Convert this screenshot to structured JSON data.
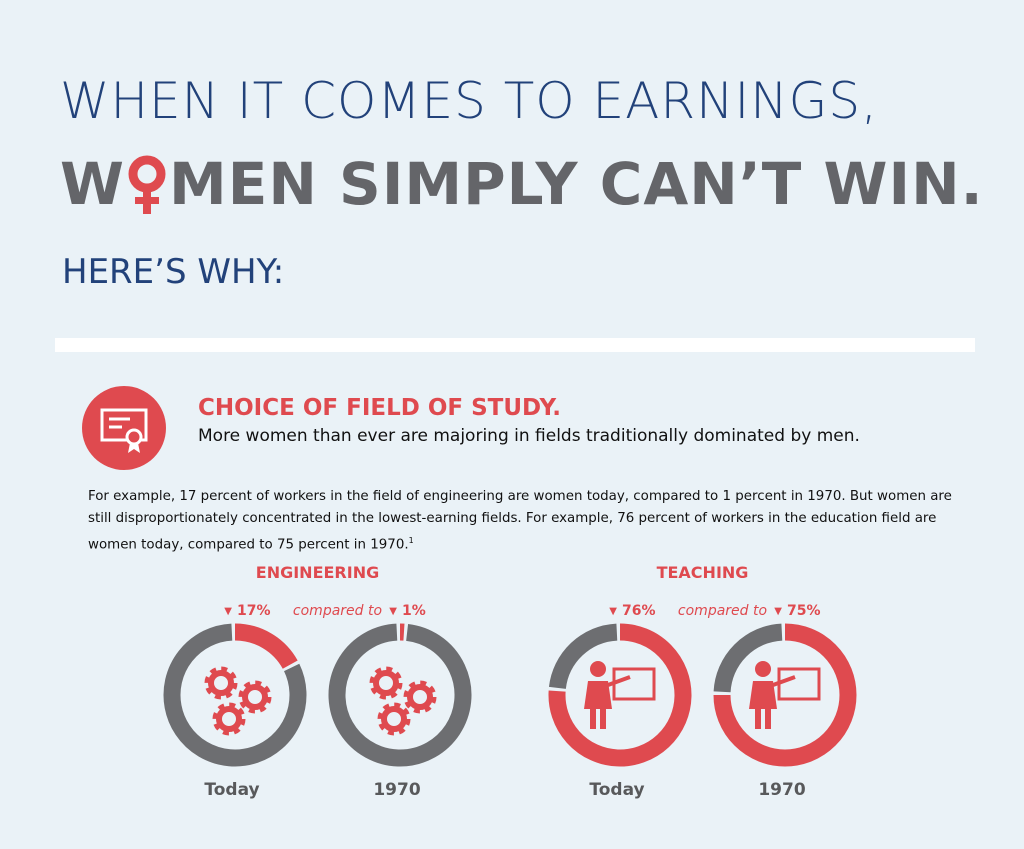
{
  "header": {
    "line1": "WHEN IT COMES TO EARNINGS,",
    "line2_start": "W",
    "line2_rest": "MEN SIMPLY CAN’T WIN.",
    "subtitle": "HERE’S WHY:"
  },
  "section": {
    "title": "CHOICE OF FIELD OF STUDY.",
    "lead": "More women than ever are majoring in fields traditionally dominated by men.",
    "body": "For example, 17 percent of workers in the field of engineering are women today, compared to 1 percent in 1970. But women are still disproportionately concentrated in the lowest-earning fields. For example, 76 percent of workers in the education field are women today, compared to 75 percent in 1970.",
    "footnote": "1"
  },
  "panels": [
    {
      "title": "ENGINEERING",
      "compare": "compared to",
      "icon": "gears",
      "donuts": [
        {
          "label": "Today",
          "value": 17,
          "value_label": "17%"
        },
        {
          "label": "1970",
          "value": 1,
          "value_label": "1%"
        }
      ]
    },
    {
      "title": "TEACHING",
      "compare": "compared to",
      "icon": "teacher",
      "donuts": [
        {
          "label": "Today",
          "value": 76,
          "value_label": "76%"
        },
        {
          "label": "1970",
          "value": 75,
          "value_label": "75%"
        }
      ]
    }
  ]
}
